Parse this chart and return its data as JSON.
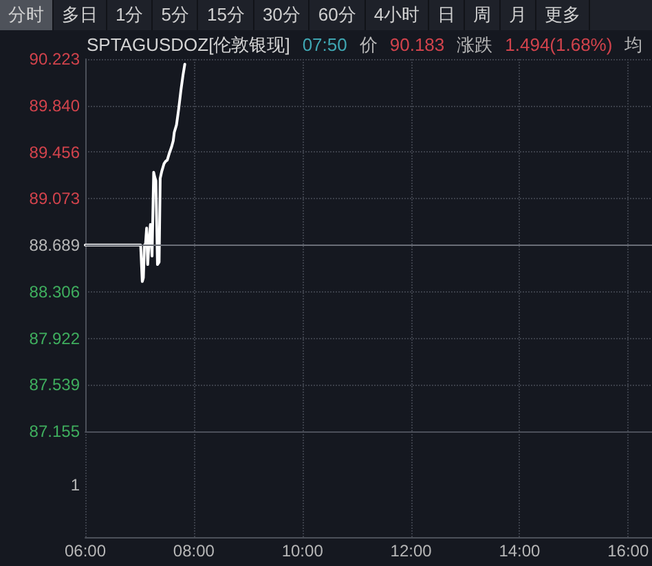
{
  "chart_data": {
    "type": "line",
    "title": "SPTAGUSDOZ[伦敦银现]",
    "subtitle": "07:50 价 90.183 涨跌 1.494(1.68%) 均",
    "annotations": [
      "分时",
      "多日",
      "1分",
      "5分",
      "15分",
      "30分",
      "60分",
      "4小时",
      "日",
      "周",
      "月",
      "更多",
      "1"
    ],
    "x": [
      6,
      7.02,
      7.05,
      7.07,
      7.09,
      7.11,
      7.13,
      7.15,
      7.18,
      7.2,
      7.23,
      7.26,
      7.28,
      7.3,
      7.33,
      7.36,
      7.38,
      7.41,
      7.45,
      7.48,
      7.51,
      7.55,
      7.59,
      7.62,
      7.64,
      7.68,
      7.72,
      7.76,
      7.8,
      7.833
    ],
    "values": [
      88.69,
      88.69,
      88.39,
      88.42,
      88.69,
      88.7,
      88.83,
      88.53,
      88.75,
      88.86,
      88.6,
      89.29,
      89.25,
      89.22,
      88.53,
      88.55,
      89.24,
      89.3,
      89.36,
      89.38,
      89.39,
      89.45,
      89.5,
      89.55,
      89.62,
      89.68,
      89.81,
      89.96,
      90.09,
      90.18
    ],
    "color": "#ffffff",
    "line_style": "solid",
    "xlim": [
      6,
      16.44
    ],
    "xticks": [
      {
        "value": 6,
        "label": "06:00"
      },
      {
        "value": 8,
        "label": "08:00"
      },
      {
        "value": 10,
        "label": "10:00"
      },
      {
        "value": 12,
        "label": "12:00"
      },
      {
        "value": 14,
        "label": "14:00"
      },
      {
        "value": 16,
        "label": "16:00"
      }
    ],
    "ylim": [
      87.155,
      90.223
    ],
    "yticks": [
      87.155,
      87.539,
      87.922,
      88.306,
      88.689,
      89.073,
      89.456,
      {
        "value": 89.84,
        "label": "89.840"
      },
      90.223
    ],
    "ref_lines": [
      {
        "axis": "y",
        "value": 88.689,
        "color": "#6a6e77",
        "line_style": "solid"
      }
    ],
    "grid": true
  }
}
